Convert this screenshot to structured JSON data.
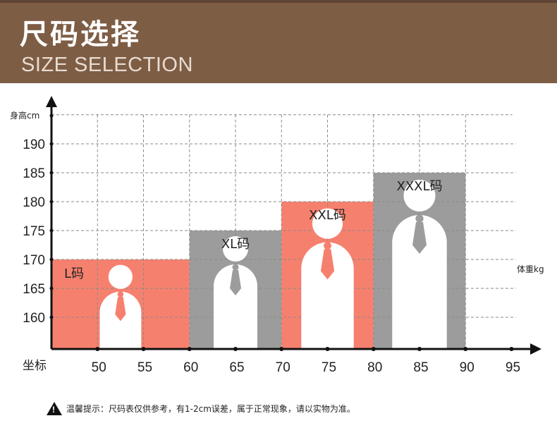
{
  "header": {
    "title": "尺码选择",
    "subtitle": "SIZE SELECTION"
  },
  "chart_data": {
    "type": "bar",
    "ylabel": "身高cm",
    "xlabel": "体重kg",
    "origin_label": "坐标",
    "x_ticks": [
      50,
      55,
      60,
      65,
      70,
      75,
      80,
      85,
      90,
      95
    ],
    "y_ticks": [
      160,
      165,
      170,
      175,
      180,
      185,
      190
    ],
    "xlim": [
      45,
      97
    ],
    "ylim": [
      155,
      196
    ],
    "grid": true,
    "sizes": [
      {
        "label": "L码",
        "x_from": 45,
        "x_to": 60,
        "height_cm": 170,
        "color": "#f6806e"
      },
      {
        "label": "XL码",
        "x_from": 60,
        "x_to": 70,
        "height_cm": 175,
        "color": "#9c9c9c"
      },
      {
        "label": "XXL码",
        "x_from": 70,
        "x_to": 80,
        "height_cm": 180,
        "color": "#f6806e"
      },
      {
        "label": "XXXL码",
        "x_from": 80,
        "x_to": 90,
        "height_cm": 185,
        "color": "#9c9c9c"
      }
    ]
  },
  "footer": {
    "warning_mark": "!",
    "note": "温馨提示：尺码表仅供参考，有1-2cm误差，属于正常现象，请以实物为准。"
  }
}
